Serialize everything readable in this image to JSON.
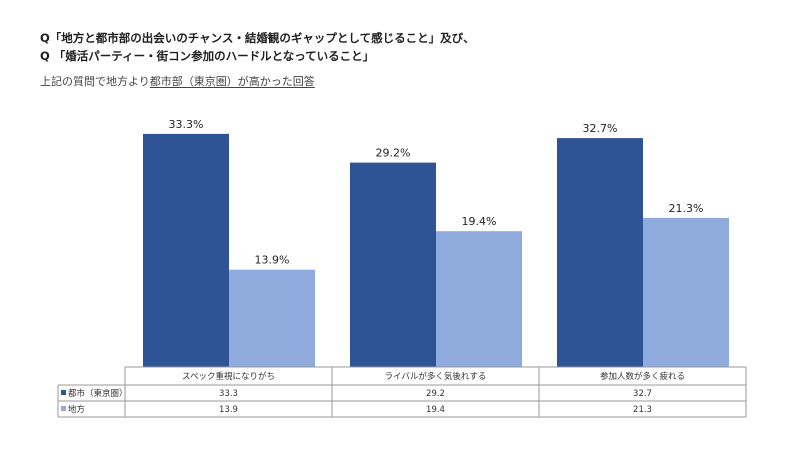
{
  "questions": {
    "q1": "Q「地方と都市部の出会いのチャンス・結婚観のギャップとして感じること」及び、",
    "q2": "Q 「婚活パーティー・街コン参加のハードルとなっていること」"
  },
  "subtitle": {
    "prefix": "上記の質問で地方より",
    "underlined": "都市部（東京圏）が高かった回答"
  },
  "colors": {
    "city": "#2E5496",
    "rural": "#8FAADC"
  },
  "chart_data": {
    "type": "bar",
    "categories": [
      "スペック重視になりがち",
      "ライバルが多く気後れする",
      "参加人数が多く疲れる"
    ],
    "series": [
      {
        "name": "都市（東京圏）",
        "values": [
          33.3,
          29.2,
          32.7
        ],
        "labels": [
          "33.3%",
          "29.2%",
          "32.7%"
        ],
        "table": [
          "33.3",
          "29.2",
          "32.7"
        ]
      },
      {
        "name": "地方",
        "values": [
          13.9,
          19.4,
          21.3
        ],
        "labels": [
          "13.9%",
          "19.4%",
          "21.3%"
        ],
        "table": [
          "13.9",
          "19.4",
          "21.3"
        ]
      }
    ],
    "ylim": [
      0,
      35
    ],
    "legend": "data-table"
  }
}
